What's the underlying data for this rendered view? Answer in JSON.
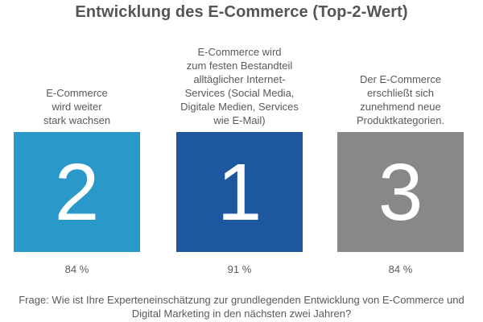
{
  "chart_data": {
    "type": "bar",
    "title": "Entwicklung des E-Commerce (Top-2-Wert)",
    "categories": [
      "E-Commerce\nwird weiter\nstark wachsen",
      "E-Commerce wird\nzum festen Bestandteil\nalltäglicher Internet-\nServices (Social Media,\nDigitale Medien, Services\nwie E-Mail)",
      "Der E-Commerce\nerschließt sich\nzunehmend neue\nProduktkategorien."
    ],
    "ranks": [
      "2",
      "1",
      "3"
    ],
    "values": [
      84,
      91,
      84
    ],
    "value_labels": [
      "84 %",
      "91 %",
      "84 %"
    ],
    "colors": [
      "#2a98c9",
      "#1d57a0",
      "#878887"
    ],
    "grid": false,
    "legend": "none"
  },
  "footnote": "Frage: Wie ist Ihre Experteneinschätzung zur grundlegenden Entwicklung von E-Commerce und Digital Marketing in den nächsten zwei Jahren?"
}
